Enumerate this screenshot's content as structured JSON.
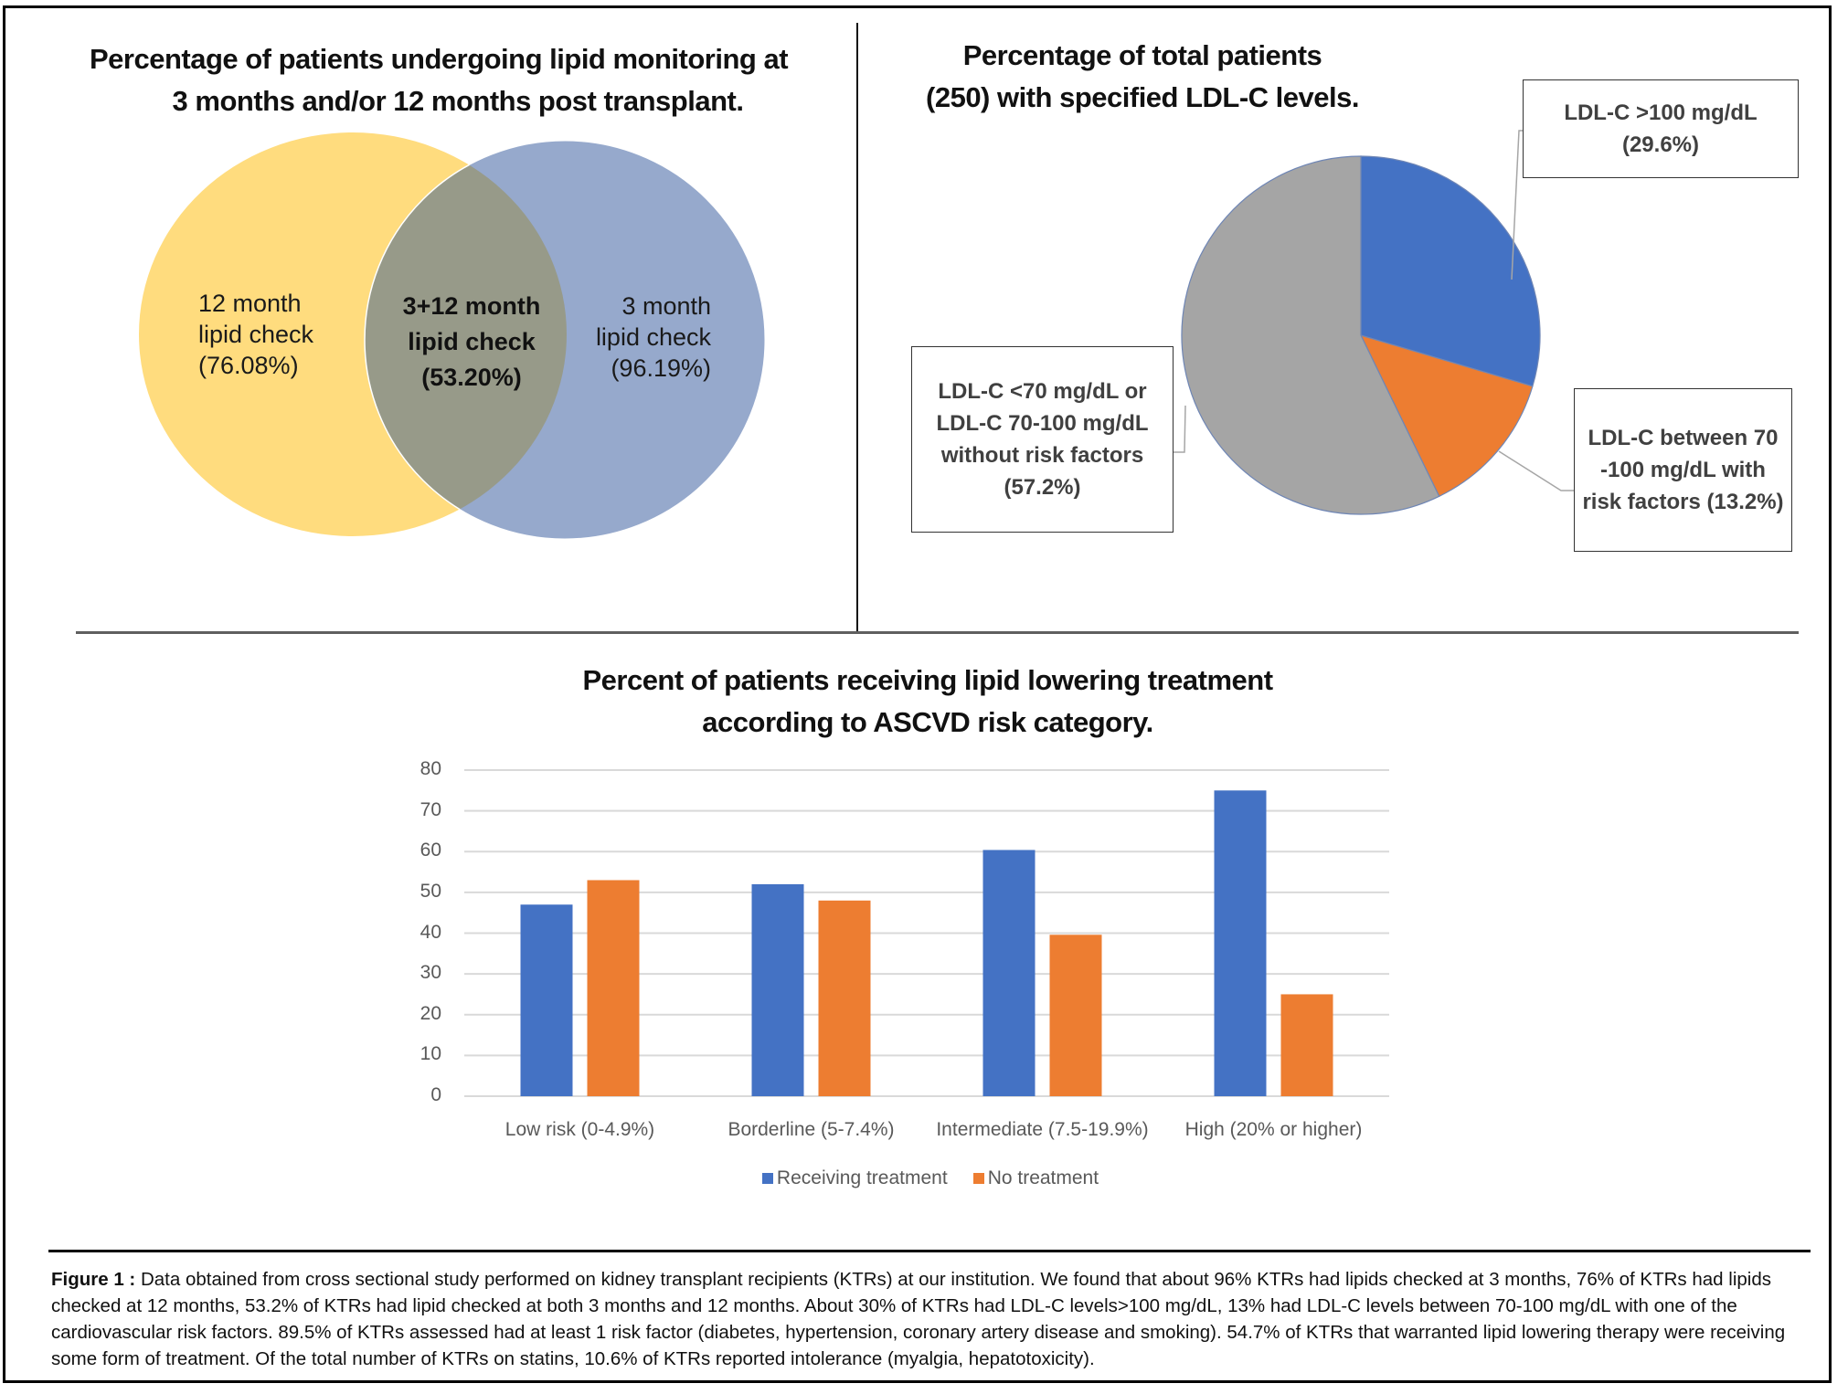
{
  "figure": {
    "caption_label": "Figure 1 :",
    "caption_text": " Data obtained from cross sectional study performed on kidney transplant recipients (KTRs) at our institution.  We found that about 96% KTRs had lipids checked at 3 months, 76% of KTRs had lipids checked at 12 months, 53.2% of KTRs had lipid checked at both 3 months and 12 months. About 30% of KTRs had LDL-C levels>100 mg/dL, 13% had LDL-C levels between 70-100 mg/dL with one of the cardiovascular risk factors. 89.5% of KTRs assessed had at least 1 risk factor (diabetes, hypertension, coronary artery disease and smoking). 54.7% of KTRs that warranted lipid lowering therapy were receiving some form of treatment. Of the total number of KTRs on statins, 10.6% of KTRs reported intolerance (myalgia, hepatotoxicity)."
  },
  "colors": {
    "venn_12_month": "#FFDC7E",
    "venn_3_month": "#96A9CC",
    "venn_overlap": "#979A89",
    "blue": "#4472C4",
    "orange": "#ED7D31",
    "gray": "#A5A5A5",
    "grid": "#D9D9D9"
  },
  "chart_data": [
    {
      "type": "venn",
      "title_line1": "Percentage of patients undergoing lipid monitoring at",
      "title_line2": "3 months and/or 12 months post transplant.",
      "sets": [
        {
          "name": "12 month lipid check",
          "line1": "12 month",
          "line2": "lipid check",
          "value_label": "(76.08%)",
          "value": 76.08
        },
        {
          "name": "3 month lipid check",
          "line1": "3 month",
          "line2": "lipid check",
          "value_label": "(96.19%)",
          "value": 96.19
        }
      ],
      "intersection": {
        "name": "3+12 month lipid check",
        "line1": "3+12 month",
        "line2": "lipid check",
        "value_label": "(53.20%)",
        "value": 53.2
      }
    },
    {
      "type": "pie",
      "title_line1": "Percentage of total patients",
      "title_line2": "(250) with specified LDL-C levels.",
      "total_patients": 250,
      "slices": [
        {
          "label": "LDL-C >100 mg/dL",
          "lines": [
            "LDL-C >100 mg/dL",
            "(29.6%)"
          ],
          "value": 29.6,
          "color": "#4472C4"
        },
        {
          "label": "LDL-C between 70-100 mg/dL with risk factors",
          "lines": [
            "LDL-C between 70",
            "-100 mg/dL with",
            "risk factors (13.2%)"
          ],
          "value": 13.2,
          "color": "#ED7D31"
        },
        {
          "label": "LDL-C <70 mg/dL or LDL-C 70-100 mg/dL without risk factors",
          "lines": [
            "LDL-C <70 mg/dL or",
            "LDL-C 70-100 mg/dL",
            "without risk factors",
            "(57.2%)"
          ],
          "value": 57.2,
          "color": "#A5A5A5"
        }
      ]
    },
    {
      "type": "bar",
      "title_line1": "Percent of patients receiving lipid lowering treatment",
      "title_line2": "according to ASCVD risk category.",
      "categories": [
        "Low risk (0-4.9%)",
        "Borderline (5-7.4%)",
        "Intermediate (7.5-19.9%)",
        "High (20% or higher)"
      ],
      "series": [
        {
          "name": "Receiving treatment",
          "values": [
            47,
            52,
            60.4,
            75
          ],
          "color": "#4472C4"
        },
        {
          "name": "No treatment",
          "values": [
            53,
            48,
            39.6,
            25
          ],
          "color": "#ED7D31"
        }
      ],
      "xlabel": "",
      "ylabel": "",
      "ylim": [
        0,
        80
      ],
      "yticks": [
        "0",
        "10",
        "20",
        "30",
        "40",
        "50",
        "60",
        "70",
        "80"
      ],
      "grid": true,
      "legend_position": "bottom"
    }
  ]
}
